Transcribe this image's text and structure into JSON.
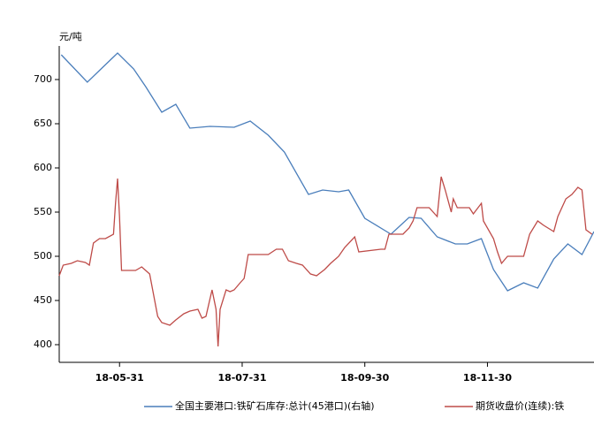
{
  "chart_data": {
    "type": "line",
    "y_label": "元/吨",
    "xlim": [
      "18-05-01",
      "19-01-22"
    ],
    "xticks": [
      "18-05-31",
      "18-07-31",
      "18-09-30",
      "18-11-30"
    ],
    "ylim": [
      380,
      750
    ],
    "yticks": [
      400,
      450,
      500,
      550,
      600,
      650,
      700
    ],
    "legend": "bottom",
    "series": [
      {
        "name": "全国主要港口:铁矿石库存:总计(45港口)(右轴)",
        "color": "#4a7ebb",
        "x": [
          "18-05-02",
          "18-05-15",
          "18-05-30",
          "18-06-07",
          "18-06-13",
          "18-06-21",
          "18-06-28",
          "18-07-05",
          "18-07-15",
          "18-07-27",
          "18-08-04",
          "18-08-13",
          "18-08-21",
          "18-09-02",
          "18-09-09",
          "18-09-17",
          "18-09-22",
          "18-09-30",
          "18-10-13",
          "18-10-22",
          "18-10-28",
          "18-11-05",
          "18-11-14",
          "18-11-20",
          "18-11-27",
          "18-12-03",
          "18-12-10",
          "18-12-18",
          "18-12-25",
          "19-01-02",
          "19-01-09",
          "19-01-16",
          "19-01-22"
        ],
        "values": [
          728,
          697,
          730,
          712,
          692,
          663,
          672,
          645,
          647,
          646,
          653,
          637,
          618,
          570,
          575,
          573,
          575,
          543,
          525,
          544,
          543,
          522,
          514,
          514,
          520,
          485,
          461,
          470,
          464,
          497,
          514,
          502,
          528
        ]
      },
      {
        "name": "期货收盘价(连续):铁",
        "color": "#be4b48",
        "x": [
          "18-05-01",
          "18-05-03",
          "18-05-07",
          "18-05-10",
          "18-05-14",
          "18-05-16",
          "18-05-18",
          "18-05-21",
          "18-05-24",
          "18-05-28",
          "18-05-29",
          "18-05-30",
          "18-05-31",
          "18-06-01",
          "18-06-05",
          "18-06-08",
          "18-06-11",
          "18-06-13",
          "18-06-15",
          "18-06-19",
          "18-06-21",
          "18-06-25",
          "18-06-28",
          "18-07-02",
          "18-07-05",
          "18-07-09",
          "18-07-11",
          "18-07-13",
          "18-07-16",
          "18-07-18",
          "18-07-19",
          "18-07-20",
          "18-07-23",
          "18-07-25",
          "18-07-27",
          "18-07-30",
          "18-08-01",
          "18-08-03",
          "18-08-08",
          "18-08-13",
          "18-08-17",
          "18-08-20",
          "18-08-23",
          "18-08-27",
          "18-08-30",
          "18-09-03",
          "18-09-06",
          "18-09-10",
          "18-09-13",
          "18-09-17",
          "18-09-20",
          "18-09-25",
          "18-09-27",
          "18-10-08",
          "18-10-10",
          "18-10-12",
          "18-10-17",
          "18-10-19",
          "18-10-22",
          "18-10-24",
          "18-10-26",
          "18-10-30",
          "18-11-01",
          "18-11-05",
          "18-11-07",
          "18-11-09",
          "18-11-12",
          "18-11-13",
          "18-11-15",
          "18-11-19",
          "18-11-21",
          "18-11-23",
          "18-11-27",
          "18-11-28",
          "18-12-03",
          "18-12-05",
          "18-12-07",
          "18-12-10",
          "18-12-14",
          "18-12-18",
          "18-12-21",
          "18-12-25",
          "18-12-28",
          "19-01-02",
          "19-01-04",
          "19-01-08",
          "19-01-11",
          "19-01-14",
          "19-01-16",
          "19-01-18",
          "19-01-21"
        ],
        "values": [
          478,
          490,
          492,
          495,
          493,
          490,
          515,
          520,
          520,
          525,
          560,
          588,
          545,
          484,
          484,
          484,
          488,
          484,
          480,
          432,
          425,
          422,
          428,
          435,
          438,
          440,
          430,
          432,
          462,
          440,
          398,
          440,
          462,
          460,
          462,
          470,
          475,
          502,
          502,
          502,
          508,
          508,
          495,
          492,
          490,
          480,
          478,
          485,
          492,
          500,
          510,
          522,
          505,
          508,
          508,
          525,
          525,
          525,
          532,
          540,
          555,
          555,
          555,
          545,
          590,
          575,
          550,
          565,
          555,
          555,
          555,
          548,
          560,
          540,
          520,
          505,
          492,
          500,
          500,
          500,
          525,
          540,
          535,
          528,
          545,
          565,
          570,
          578,
          575,
          530,
          525
        ]
      }
    ]
  }
}
